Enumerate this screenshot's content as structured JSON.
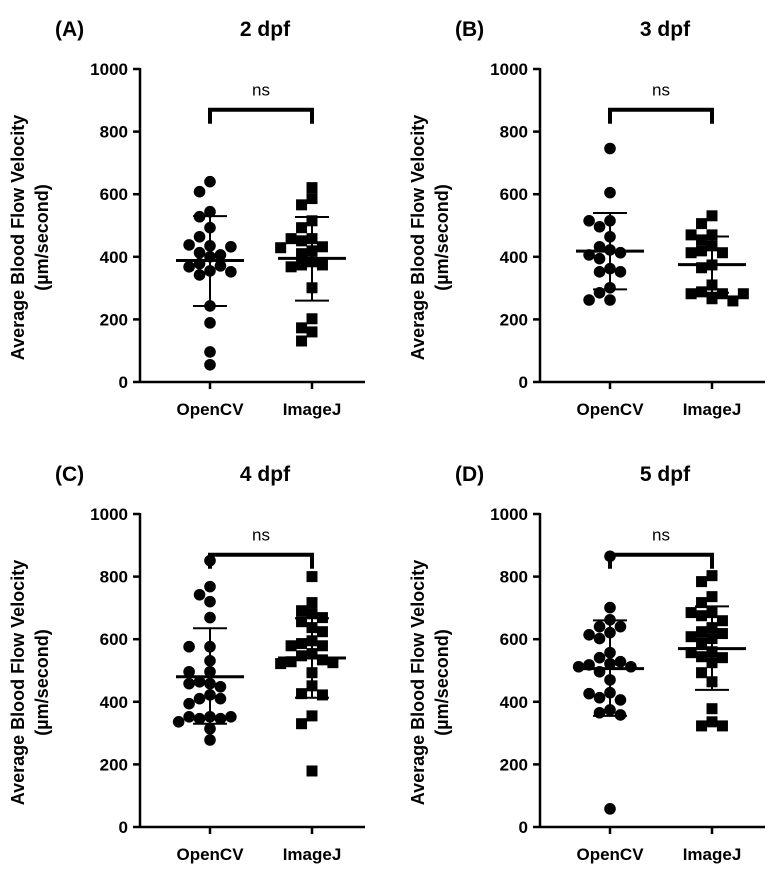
{
  "chart_data": [
    {
      "type": "scatter",
      "panel_label": "(A)",
      "title": "2 dpf",
      "ylabel": "Average Blood Flow Velocity",
      "ylabel_units": "(µm/second)",
      "ylim": [
        0,
        1000
      ],
      "yticks": [
        "0",
        "200",
        "400",
        "600",
        "800",
        "1000"
      ],
      "categories": [
        "OpenCV",
        "ImageJ"
      ],
      "significance": "ns",
      "series": [
        {
          "name": "OpenCV",
          "marker": "circle",
          "mean": 388,
          "sd_upper": 530,
          "sd_lower": 243,
          "values": [
            640,
            608,
            544,
            528,
            493,
            464,
            435,
            438,
            432,
            413,
            406,
            400,
            378,
            371,
            368,
            355,
            352,
            342,
            243,
            189,
            96,
            55
          ]
        },
        {
          "name": "ImageJ",
          "marker": "square",
          "mean": 395,
          "sd_upper": 527,
          "sd_lower": 260,
          "values": [
            621,
            586,
            566,
            515,
            493,
            458,
            458,
            451,
            432,
            429,
            419,
            410,
            384,
            374,
            374,
            368,
            301,
            202,
            173,
            160,
            131
          ]
        }
      ]
    },
    {
      "type": "scatter",
      "panel_label": "(B)",
      "title": "3 dpf",
      "ylabel": "Average Blood Flow Velocity",
      "ylabel_units": "(µm/second)",
      "ylim": [
        0,
        1000
      ],
      "yticks": [
        "0",
        "200",
        "400",
        "600",
        "800",
        "1000"
      ],
      "categories": [
        "OpenCV",
        "ImageJ"
      ],
      "significance": "ns",
      "series": [
        {
          "name": "OpenCV",
          "marker": "circle",
          "mean": 418,
          "sd_upper": 540,
          "sd_lower": 296,
          "values": [
            746,
            605,
            515,
            515,
            496,
            464,
            432,
            422,
            413,
            406,
            394,
            362,
            352,
            352,
            301,
            285,
            262,
            262
          ]
        },
        {
          "name": "ImageJ",
          "marker": "square",
          "mean": 375,
          "sd_upper": 465,
          "sd_lower": 285,
          "values": [
            531,
            506,
            470,
            470,
            454,
            435,
            419,
            413,
            413,
            374,
            365,
            310,
            288,
            282,
            282,
            282,
            266,
            259
          ]
        }
      ]
    },
    {
      "type": "scatter",
      "panel_label": "(C)",
      "title": "4 dpf",
      "ylabel": "Average Blood Flow Velocity",
      "ylabel_units": "(µm/second)",
      "ylim": [
        0,
        1000
      ],
      "yticks": [
        "0",
        "200",
        "400",
        "600",
        "800",
        "1000"
      ],
      "categories": [
        "OpenCV",
        "ImageJ"
      ],
      "significance": "ns",
      "series": [
        {
          "name": "OpenCV",
          "marker": "circle",
          "mean": 480,
          "sd_upper": 635,
          "sd_lower": 330,
          "values": [
            851,
            768,
            742,
            720,
            669,
            576,
            576,
            531,
            496,
            496,
            464,
            458,
            458,
            448,
            422,
            410,
            410,
            394,
            352,
            352,
            352,
            346,
            346,
            336,
            314,
            278
          ]
        },
        {
          "name": "ImageJ",
          "marker": "square",
          "mean": 540,
          "sd_upper": 667,
          "sd_lower": 413,
          "values": [
            800,
            717,
            691,
            682,
            669,
            656,
            637,
            624,
            595,
            586,
            579,
            579,
            554,
            547,
            534,
            528,
            525,
            522,
            493,
            451,
            426,
            422,
            355,
            330,
            179
          ]
        }
      ]
    },
    {
      "type": "scatter",
      "panel_label": "(D)",
      "title": "5 dpf",
      "ylabel": "Average Blood Flow Velocity",
      "ylabel_units": "(µm/second)",
      "ylim": [
        0,
        1000
      ],
      "yticks": [
        "0",
        "200",
        "400",
        "600",
        "800",
        "1000"
      ],
      "categories": [
        "OpenCV",
        "ImageJ"
      ],
      "significance": "ns",
      "series": [
        {
          "name": "OpenCV",
          "marker": "circle",
          "mean": 506,
          "sd_upper": 660,
          "sd_lower": 355,
          "values": [
            865,
            701,
            662,
            640,
            640,
            621,
            614,
            602,
            557,
            541,
            528,
            522,
            518,
            512,
            512,
            496,
            470,
            429,
            426,
            413,
            406,
            374,
            365,
            358,
            58
          ]
        },
        {
          "name": "ImageJ",
          "marker": "square",
          "mean": 570,
          "sd_upper": 705,
          "sd_lower": 438,
          "values": [
            803,
            784,
            736,
            717,
            685,
            685,
            675,
            659,
            637,
            624,
            618,
            608,
            602,
            589,
            560,
            557,
            544,
            541,
            525,
            493,
            464,
            378,
            336,
            323,
            323
          ]
        }
      ]
    }
  ]
}
